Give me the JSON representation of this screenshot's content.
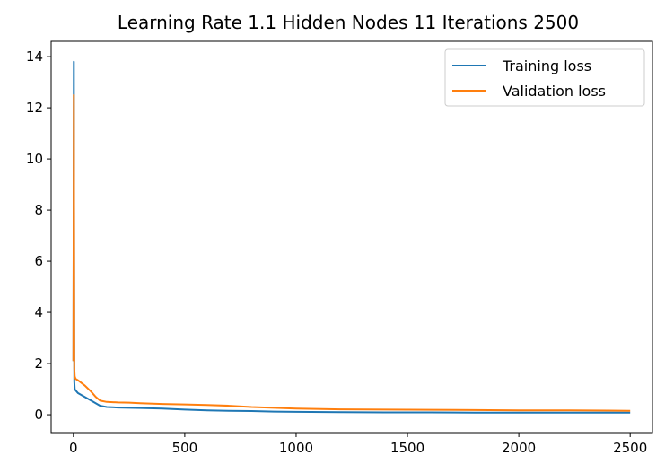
{
  "chart_data": {
    "type": "line",
    "title": "Learning Rate 1.1 Hidden Nodes 11 Iterations 2500",
    "xlabel": "",
    "ylabel": "",
    "xlim": [
      -100,
      2600
    ],
    "ylim": [
      -0.7,
      14.6
    ],
    "xticks": [
      0,
      500,
      1000,
      1500,
      2000,
      2500
    ],
    "yticks": [
      0,
      2,
      4,
      6,
      8,
      10,
      12,
      14
    ],
    "grid": false,
    "legend_position": "top-right",
    "series": [
      {
        "name": "Training loss",
        "color": "#1f77b4",
        "x": [
          0,
          2,
          4,
          6,
          10,
          20,
          50,
          80,
          100,
          120,
          150,
          200,
          250,
          300,
          400,
          500,
          600,
          700,
          800,
          900,
          1000,
          1200,
          1400,
          1600,
          1800,
          2000,
          2200,
          2400,
          2500
        ],
        "y": [
          2.1,
          13.8,
          1.3,
          1.0,
          0.95,
          0.85,
          0.7,
          0.55,
          0.45,
          0.35,
          0.3,
          0.28,
          0.27,
          0.26,
          0.24,
          0.2,
          0.17,
          0.15,
          0.14,
          0.12,
          0.11,
          0.1,
          0.09,
          0.09,
          0.08,
          0.08,
          0.08,
          0.08,
          0.08
        ]
      },
      {
        "name": "Validation loss",
        "color": "#ff7f0e",
        "x": [
          0,
          2,
          4,
          6,
          10,
          20,
          50,
          80,
          100,
          120,
          150,
          200,
          250,
          300,
          400,
          500,
          600,
          700,
          800,
          900,
          1000,
          1200,
          1400,
          1600,
          1800,
          2000,
          2200,
          2400,
          2500
        ],
        "y": [
          2.1,
          12.5,
          1.8,
          1.5,
          1.4,
          1.35,
          1.15,
          0.9,
          0.7,
          0.55,
          0.5,
          0.48,
          0.47,
          0.45,
          0.42,
          0.4,
          0.38,
          0.35,
          0.3,
          0.27,
          0.24,
          0.21,
          0.2,
          0.19,
          0.18,
          0.17,
          0.17,
          0.16,
          0.15
        ]
      }
    ]
  }
}
